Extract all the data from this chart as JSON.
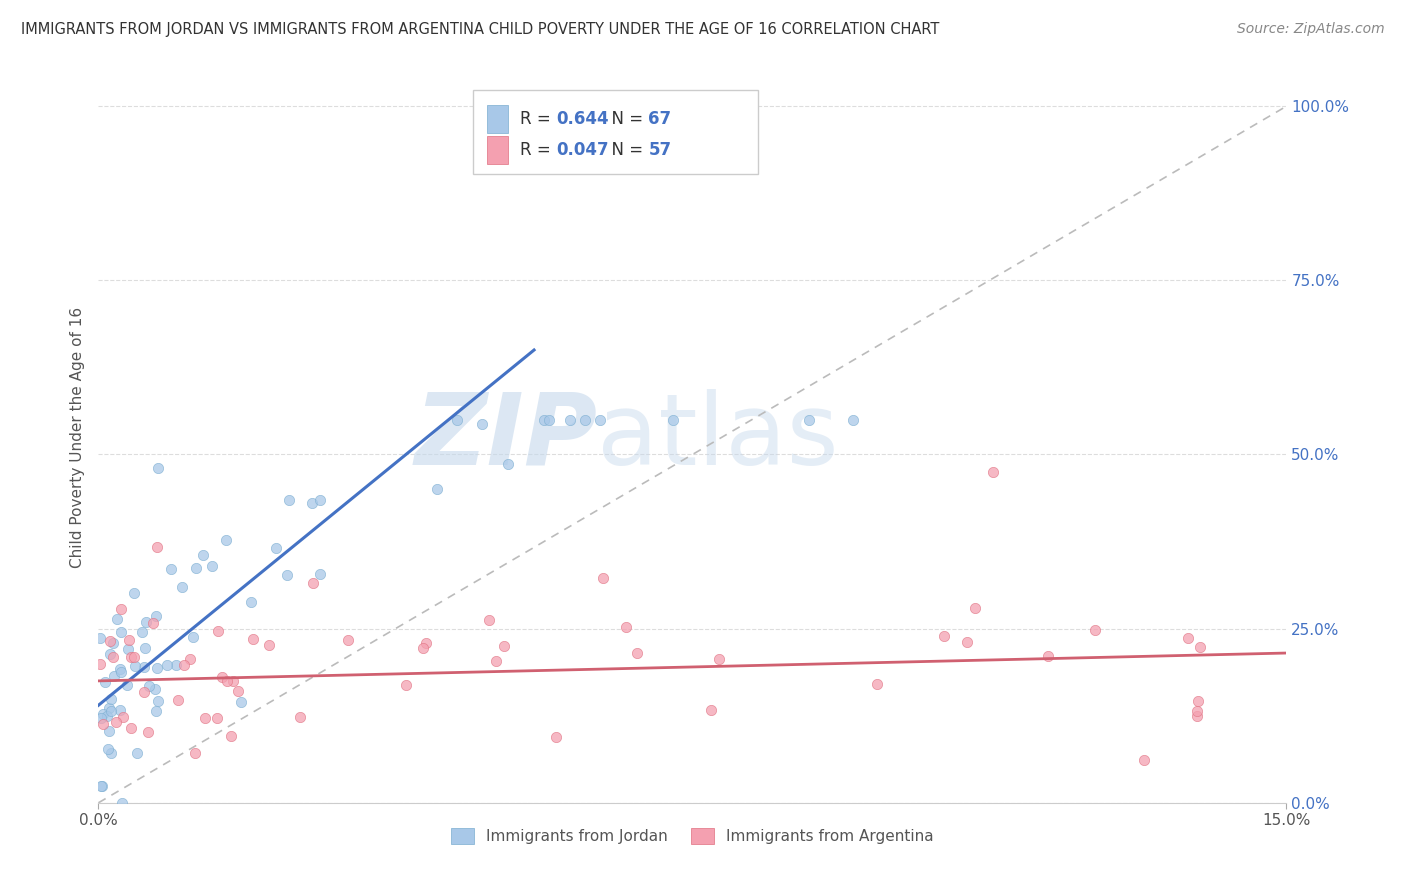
{
  "title": "IMMIGRANTS FROM JORDAN VS IMMIGRANTS FROM ARGENTINA CHILD POVERTY UNDER THE AGE OF 16 CORRELATION CHART",
  "source": "Source: ZipAtlas.com",
  "ylabel": "Child Poverty Under the Age of 16",
  "ytick_labels": [
    "0.0%",
    "25.0%",
    "50.0%",
    "75.0%",
    "100.0%"
  ],
  "ytick_values": [
    0.0,
    0.25,
    0.5,
    0.75,
    1.0
  ],
  "xlim": [
    0.0,
    0.15
  ],
  "ylim": [
    0.0,
    1.05
  ],
  "jordan_color": "#a8c8e8",
  "argentina_color": "#f4a0b0",
  "jordan_R": 0.644,
  "jordan_N": 67,
  "argentina_R": 0.047,
  "argentina_N": 57,
  "legend_jordan": "Immigrants from Jordan",
  "legend_argentina": "Immigrants from Argentina",
  "watermark_zip": "ZIP",
  "watermark_atlas": "atlas",
  "diagonal_line_color": "#bbbbbb",
  "jordan_line_color": "#4472c4",
  "argentina_line_color": "#d06070",
  "background_color": "#ffffff",
  "grid_color": "#dddddd",
  "jordan_line_x0": 0.0,
  "jordan_line_y0": 0.14,
  "jordan_line_x1": 0.055,
  "jordan_line_y1": 0.65,
  "argentina_line_x0": 0.0,
  "argentina_line_y0": 0.175,
  "argentina_line_x1": 0.15,
  "argentina_line_y1": 0.215
}
